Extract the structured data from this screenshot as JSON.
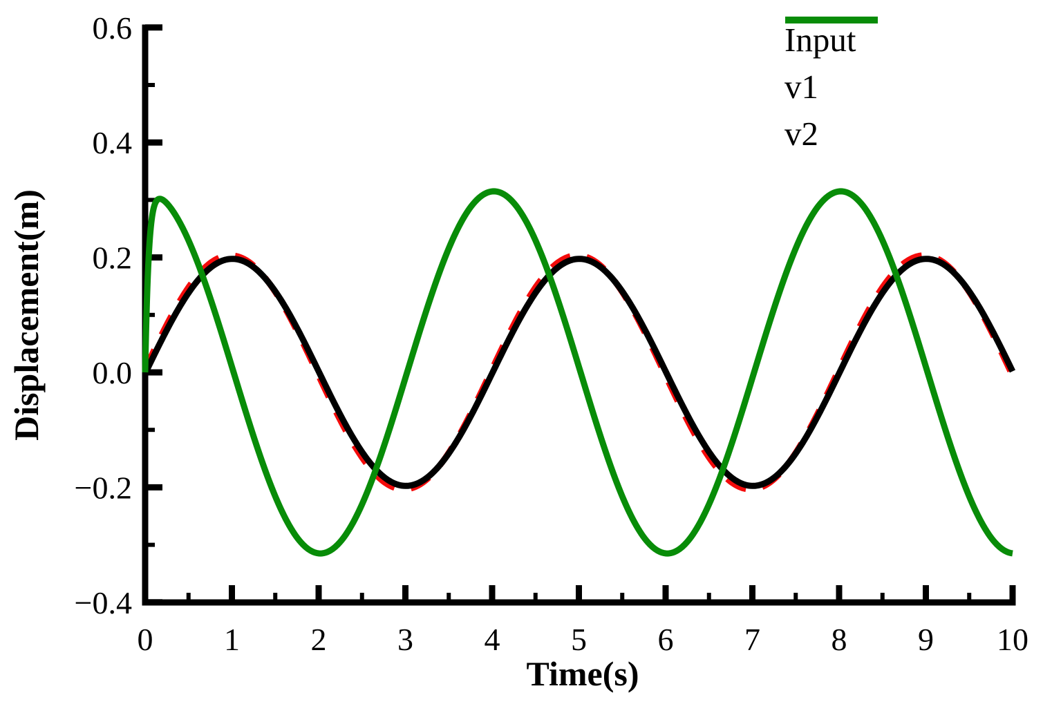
{
  "chart_data": {
    "type": "line",
    "title": "",
    "xlabel": "Time(s)",
    "ylabel": "Displacement(m)",
    "xlim": [
      0,
      10
    ],
    "ylim": [
      -0.4,
      0.6
    ],
    "grid": false,
    "legend_position": "top-right",
    "x_axis": {
      "major_ticks": [
        0,
        1,
        2,
        3,
        4,
        5,
        6,
        7,
        8,
        9,
        10
      ],
      "major_tick_labels": [
        "0",
        "1",
        "2",
        "3",
        "4",
        "5",
        "6",
        "7",
        "8",
        "9",
        "10"
      ],
      "minor_ticks": [
        0.5,
        1.5,
        2.5,
        3.5,
        4.5,
        5.5,
        6.5,
        7.5,
        8.5,
        9.5
      ],
      "tick_direction": "in"
    },
    "y_axis": {
      "major_ticks": [
        0.6,
        0.4,
        0.2,
        0.0,
        -0.2,
        -0.4
      ],
      "major_tick_labels": [
        "0.6",
        "0.4",
        "0.2",
        "0.0",
        "−0.2",
        "−0.4"
      ],
      "minor_ticks": [
        0.5,
        0.3,
        0.1,
        -0.1,
        -0.3
      ],
      "tick_direction": "in"
    },
    "series": [
      {
        "label": "Input",
        "color": "#f40b0b",
        "line_style": "dashed",
        "model": "sine",
        "amplitude": 0.2,
        "period_s": 4,
        "phase_s": 0.0,
        "t_start": 0,
        "t_end": 10,
        "peaks_at_t": [
          1,
          5,
          9
        ],
        "troughs_at_t": [
          3,
          7
        ]
      },
      {
        "label": "v1",
        "color": "#000000",
        "line_style": "solid",
        "model": "sine",
        "amplitude": 0.2,
        "period_s": 4,
        "phase_s": 0.0,
        "t_start": 0,
        "t_end": 10,
        "peaks_at_t": [
          1,
          5,
          9
        ],
        "troughs_at_t": [
          3,
          7
        ]
      },
      {
        "label": "v2",
        "color": "#088c08",
        "line_style": "solid",
        "model": "rise_cosine",
        "amplitude": 0.315,
        "period_s": 4,
        "phase_s": 0.02,
        "rise_tau_s": 0.04,
        "t_start": 0,
        "t_end": 10,
        "start_value": 0.0,
        "peaks_at_t": [
          0.15,
          4,
          8
        ],
        "troughs_at_t": [
          2,
          6,
          10
        ]
      }
    ]
  }
}
